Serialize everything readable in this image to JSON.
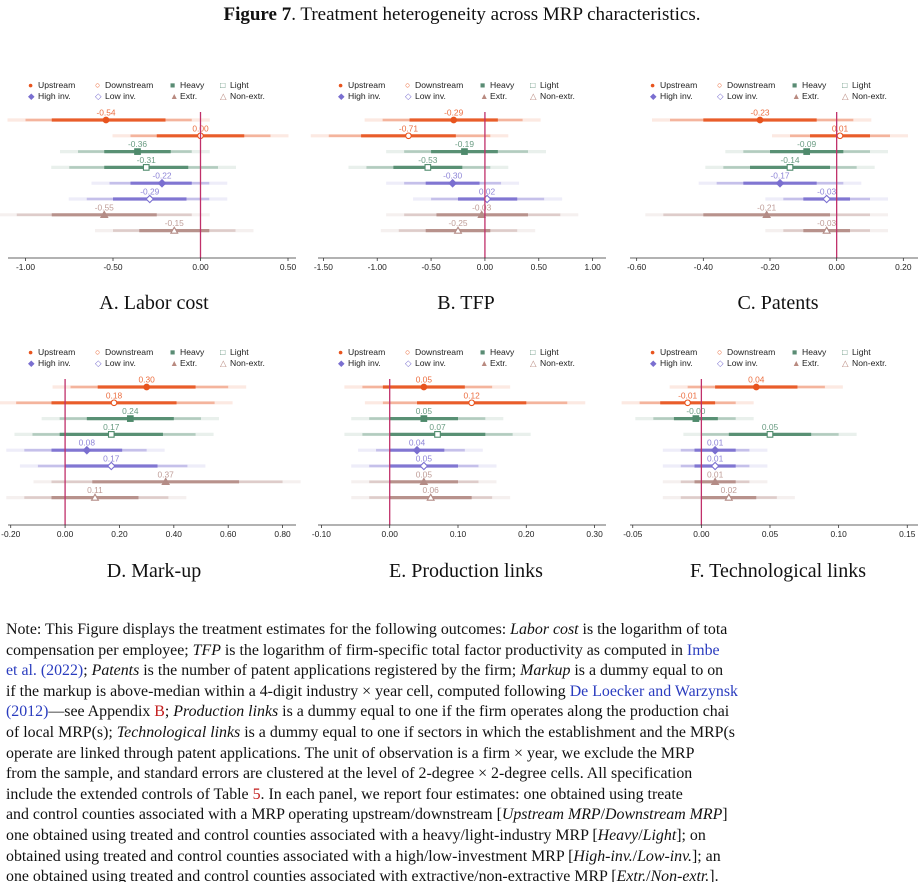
{
  "figure": {
    "label": "Figure 7",
    "title": ". Treatment heterogeneity across MRP characteristics."
  },
  "legend": {
    "row1": [
      {
        "key": "upstream",
        "text": "Upstream",
        "symbol": "●",
        "color": "#e8541e"
      },
      {
        "key": "downstream",
        "text": "Downstream",
        "symbol": "○",
        "color": "#e8541e"
      },
      {
        "key": "heavy",
        "text": "Heavy",
        "symbol": "■",
        "color": "#5a8c74"
      },
      {
        "key": "light",
        "text": "Light",
        "symbol": "□",
        "color": "#5a8c74"
      }
    ],
    "row2": [
      {
        "key": "high_inv",
        "text": "High inv.",
        "symbol": "◆",
        "color": "#7a6fd0"
      },
      {
        "key": "low_inv",
        "text": "Low inv.",
        "symbol": "◇",
        "color": "#7a6fd0"
      },
      {
        "key": "extr",
        "text": "Extr.",
        "symbol": "▲",
        "color": "#b98a80"
      },
      {
        "key": "non_extr",
        "text": "Non-extr.",
        "symbol": "△",
        "color": "#b98a80"
      }
    ]
  },
  "colors": {
    "upstream": "#e8541e",
    "heavy": "#4f8a6c",
    "high_inv": "#7a6fd0",
    "extr": "#b48c86",
    "zero_line": "#c0306a"
  },
  "chart_data": [
    {
      "type": "forest",
      "caption": "A. Labor cost",
      "xlim": [
        -1.1,
        0.5
      ],
      "ticks": [
        "-1.00",
        "-0.50",
        "0.00",
        "0.50"
      ],
      "tick_values": [
        -1.0,
        -0.5,
        0.0,
        0.5
      ],
      "estimates": [
        {
          "group": "upstream",
          "label": "-0.54",
          "value": -0.54,
          "ci95": [
            -0.85,
            -0.2
          ],
          "ci99": [
            -1.0,
            -0.05
          ]
        },
        {
          "group": "downstream",
          "label": "0.00",
          "value": 0.0,
          "ci95": [
            -0.25,
            0.25
          ],
          "ci99": [
            -0.4,
            0.4
          ]
        },
        {
          "group": "heavy",
          "label": "-0.36",
          "value": -0.36,
          "ci95": [
            -0.55,
            -0.17
          ],
          "ci99": [
            -0.7,
            -0.05
          ]
        },
        {
          "group": "light",
          "label": "-0.31",
          "value": -0.31,
          "ci95": [
            -0.55,
            -0.07
          ],
          "ci99": [
            -0.75,
            0.1
          ]
        },
        {
          "group": "high_inv",
          "label": "-0.22",
          "value": -0.22,
          "ci95": [
            -0.4,
            -0.05
          ],
          "ci99": [
            -0.52,
            0.05
          ]
        },
        {
          "group": "low_inv",
          "label": "-0.29",
          "value": -0.29,
          "ci95": [
            -0.5,
            -0.08
          ],
          "ci99": [
            -0.65,
            0.05
          ]
        },
        {
          "group": "extr",
          "label": "-0.55",
          "value": -0.55,
          "ci95": [
            -0.85,
            -0.25
          ],
          "ci99": [
            -1.05,
            -0.05
          ]
        },
        {
          "group": "non_extr",
          "label": "-0.15",
          "value": -0.15,
          "ci95": [
            -0.35,
            0.05
          ],
          "ci99": [
            -0.5,
            0.2
          ]
        }
      ]
    },
    {
      "type": "forest",
      "caption": "B. TFP",
      "xlim": [
        -1.55,
        1.05
      ],
      "ticks": [
        "-1.50",
        "-1.00",
        "-0.50",
        "0.00",
        "0.50",
        "1.00"
      ],
      "tick_values": [
        -1.5,
        -1.0,
        -0.5,
        0.0,
        0.5,
        1.0
      ],
      "estimates": [
        {
          "group": "upstream",
          "label": "-0.29",
          "value": -0.29,
          "ci95": [
            -0.7,
            0.12
          ],
          "ci99": [
            -0.95,
            0.35
          ]
        },
        {
          "group": "downstream",
          "label": "-0.71",
          "value": -0.71,
          "ci95": [
            -1.15,
            -0.27
          ],
          "ci99": [
            -1.45,
            0.05
          ]
        },
        {
          "group": "heavy",
          "label": "-0.19",
          "value": -0.19,
          "ci95": [
            -0.5,
            0.12
          ],
          "ci99": [
            -0.75,
            0.4
          ]
        },
        {
          "group": "light",
          "label": "-0.53",
          "value": -0.53,
          "ci95": [
            -0.85,
            -0.21
          ],
          "ci99": [
            -1.1,
            0.05
          ]
        },
        {
          "group": "high_inv",
          "label": "-0.30",
          "value": -0.3,
          "ci95": [
            -0.55,
            -0.05
          ],
          "ci99": [
            -0.75,
            0.15
          ]
        },
        {
          "group": "low_inv",
          "label": "0.02",
          "value": 0.02,
          "ci95": [
            -0.25,
            0.3
          ],
          "ci99": [
            -0.5,
            0.55
          ]
        },
        {
          "group": "extr",
          "label": "-0.03",
          "value": -0.03,
          "ci95": [
            -0.45,
            0.4
          ],
          "ci99": [
            -0.75,
            0.7
          ]
        },
        {
          "group": "non_extr",
          "label": "-0.25",
          "value": -0.25,
          "ci95": [
            -0.55,
            0.05
          ],
          "ci99": [
            -0.8,
            0.3
          ]
        }
      ]
    },
    {
      "type": "forest",
      "caption": "C. Patents",
      "xlim": [
        -0.62,
        0.22
      ],
      "ticks": [
        "-0.60",
        "-0.40",
        "-0.20",
        "0.00",
        "0.20"
      ],
      "tick_values": [
        -0.6,
        -0.4,
        -0.2,
        0.0,
        0.2
      ],
      "estimates": [
        {
          "group": "upstream",
          "label": "-0.23",
          "value": -0.23,
          "ci95": [
            -0.4,
            -0.06
          ],
          "ci99": [
            -0.5,
            0.05
          ]
        },
        {
          "group": "downstream",
          "label": "0.01",
          "value": 0.01,
          "ci95": [
            -0.08,
            0.1
          ],
          "ci99": [
            -0.14,
            0.16
          ]
        },
        {
          "group": "heavy",
          "label": "-0.09",
          "value": -0.09,
          "ci95": [
            -0.2,
            0.02
          ],
          "ci99": [
            -0.28,
            0.1
          ]
        },
        {
          "group": "light",
          "label": "-0.14",
          "value": -0.14,
          "ci95": [
            -0.26,
            -0.02
          ],
          "ci99": [
            -0.34,
            0.06
          ]
        },
        {
          "group": "high_inv",
          "label": "-0.17",
          "value": -0.17,
          "ci95": [
            -0.28,
            -0.06
          ],
          "ci99": [
            -0.36,
            0.02
          ]
        },
        {
          "group": "low_inv",
          "label": "-0.03",
          "value": -0.03,
          "ci95": [
            -0.1,
            0.04
          ],
          "ci99": [
            -0.16,
            0.1
          ]
        },
        {
          "group": "extr",
          "label": "-0.21",
          "value": -0.21,
          "ci95": [
            -0.4,
            -0.02
          ],
          "ci99": [
            -0.52,
            0.1
          ]
        },
        {
          "group": "non_extr",
          "label": "-0.03",
          "value": -0.03,
          "ci95": [
            -0.1,
            0.04
          ],
          "ci99": [
            -0.16,
            0.1
          ]
        }
      ]
    },
    {
      "type": "forest",
      "caption": "D. Mark-up",
      "xlim": [
        -0.21,
        0.82
      ],
      "ticks": [
        "-0.20",
        "0.00",
        "0.20",
        "0.40",
        "0.60",
        "0.80"
      ],
      "tick_values": [
        -0.2,
        0.0,
        0.2,
        0.4,
        0.6,
        0.8
      ],
      "estimates": [
        {
          "group": "upstream",
          "label": "0.30",
          "value": 0.3,
          "ci95": [
            0.12,
            0.48
          ],
          "ci99": [
            0.02,
            0.6
          ]
        },
        {
          "group": "downstream",
          "label": "0.18",
          "value": 0.18,
          "ci95": [
            -0.05,
            0.41
          ],
          "ci99": [
            -0.18,
            0.55
          ]
        },
        {
          "group": "heavy",
          "label": "0.24",
          "value": 0.24,
          "ci95": [
            0.08,
            0.4
          ],
          "ci99": [
            -0.02,
            0.5
          ]
        },
        {
          "group": "light",
          "label": "0.17",
          "value": 0.17,
          "ci95": [
            -0.02,
            0.36
          ],
          "ci99": [
            -0.12,
            0.48
          ]
        },
        {
          "group": "high_inv",
          "label": "0.08",
          "value": 0.08,
          "ci95": [
            -0.05,
            0.21
          ],
          "ci99": [
            -0.15,
            0.3
          ]
        },
        {
          "group": "low_inv",
          "label": "0.17",
          "value": 0.17,
          "ci95": [
            0.0,
            0.34
          ],
          "ci99": [
            -0.1,
            0.45
          ]
        },
        {
          "group": "extr",
          "label": "0.37",
          "value": 0.37,
          "ci95": [
            0.1,
            0.64
          ],
          "ci99": [
            -0.05,
            0.8
          ]
        },
        {
          "group": "non_extr",
          "label": "0.11",
          "value": 0.11,
          "ci95": [
            -0.05,
            0.27
          ],
          "ci99": [
            -0.15,
            0.38
          ]
        }
      ]
    },
    {
      "type": "forest",
      "caption": "E. Production links",
      "xlim": [
        -0.105,
        0.305
      ],
      "ticks": [
        "-0.10",
        "0.00",
        "0.10",
        "0.20",
        "0.30"
      ],
      "tick_values": [
        -0.1,
        0.0,
        0.1,
        0.2,
        0.3
      ],
      "estimates": [
        {
          "group": "upstream",
          "label": "0.05",
          "value": 0.05,
          "ci95": [
            -0.01,
            0.11
          ],
          "ci99": [
            -0.04,
            0.15
          ]
        },
        {
          "group": "downstream",
          "label": "0.12",
          "value": 0.12,
          "ci95": [
            0.04,
            0.2
          ],
          "ci99": [
            -0.01,
            0.26
          ]
        },
        {
          "group": "heavy",
          "label": "0.05",
          "value": 0.05,
          "ci95": [
            0.0,
            0.1
          ],
          "ci99": [
            -0.03,
            0.14
          ]
        },
        {
          "group": "light",
          "label": "0.07",
          "value": 0.07,
          "ci95": [
            0.0,
            0.14
          ],
          "ci99": [
            -0.04,
            0.18
          ]
        },
        {
          "group": "high_inv",
          "label": "0.04",
          "value": 0.04,
          "ci95": [
            0.0,
            0.08
          ],
          "ci99": [
            -0.02,
            0.11
          ]
        },
        {
          "group": "low_inv",
          "label": "0.05",
          "value": 0.05,
          "ci95": [
            0.0,
            0.1
          ],
          "ci99": [
            -0.03,
            0.13
          ]
        },
        {
          "group": "extr",
          "label": "0.05",
          "value": 0.05,
          "ci95": [
            0.0,
            0.1
          ],
          "ci99": [
            -0.03,
            0.13
          ]
        },
        {
          "group": "non_extr",
          "label": "0.06",
          "value": 0.06,
          "ci95": [
            0.0,
            0.12
          ],
          "ci99": [
            -0.03,
            0.15
          ]
        }
      ]
    },
    {
      "type": "forest",
      "caption": "F. Technological links",
      "xlim": [
        -0.052,
        0.152
      ],
      "ticks": [
        "-0.05",
        "0.00",
        "0.05",
        "0.10",
        "0.15"
      ],
      "tick_values": [
        -0.05,
        0.0,
        0.05,
        0.1,
        0.15
      ],
      "estimates": [
        {
          "group": "upstream",
          "label": "0.04",
          "value": 0.04,
          "ci95": [
            0.01,
            0.07
          ],
          "ci99": [
            -0.01,
            0.09
          ]
        },
        {
          "group": "downstream",
          "label": "-0.01",
          "value": -0.01,
          "ci95": [
            -0.03,
            0.01
          ],
          "ci99": [
            -0.045,
            0.025
          ]
        },
        {
          "group": "heavy",
          "label": "-0.00",
          "value": -0.004,
          "ci95": [
            -0.02,
            0.012
          ],
          "ci99": [
            -0.035,
            0.025
          ]
        },
        {
          "group": "light",
          "label": "0.05",
          "value": 0.05,
          "ci95": [
            0.02,
            0.08
          ],
          "ci99": [
            0.0,
            0.1
          ]
        },
        {
          "group": "high_inv",
          "label": "0.01",
          "value": 0.01,
          "ci95": [
            -0.005,
            0.025
          ],
          "ci99": [
            -0.015,
            0.035
          ]
        },
        {
          "group": "low_inv",
          "label": "0.01",
          "value": 0.01,
          "ci95": [
            -0.005,
            0.025
          ],
          "ci99": [
            -0.015,
            0.035
          ]
        },
        {
          "group": "extr",
          "label": "0.01",
          "value": 0.01,
          "ci95": [
            -0.005,
            0.025
          ],
          "ci99": [
            -0.015,
            0.035
          ]
        },
        {
          "group": "non_extr",
          "label": "0.02",
          "value": 0.02,
          "ci95": [
            0.0,
            0.04
          ],
          "ci99": [
            -0.015,
            0.055
          ]
        }
      ]
    }
  ],
  "note": {
    "l1a": "Note: This Figure displays the treatment estimates for the following outcomes: ",
    "l1b": "Labor cost",
    "l1c": " is the logarithm of tota",
    "l2a": "compensation per employee; ",
    "l2b": "TFP",
    "l2c": " is the logarithm of firm-specific total factor productivity as computed in ",
    "l2d": "Imbe",
    "l3a": "et al. (2022)",
    "l3b": "; ",
    "l3c": "Patents",
    "l3d": " is the number of patent applications registered by the firm; ",
    "l3e": "Markup",
    "l3f": " is a dummy equal to on",
    "l4a": "if the markup is above-median within a 4-digit industry × year cell, computed following ",
    "l4b": "De Loecker and Warzynsk",
    "l5a": "(2012)",
    "l5b": "—see Appendix ",
    "l5c": "B",
    "l5d": "; ",
    "l5e": "Production links",
    "l5f": " is a dummy equal to one if the firm operates along the production chai",
    "l6a": "of local MRP(s); ",
    "l6b": "Technological links",
    "l6c": " is a dummy equal to one if sectors in which the establishment and the MRP(s",
    "l7": "operate are linked through patent applications.  The unit of observation is a firm × year, we exclude the MRP",
    "l8": "from the sample, and standard errors are clustered at the level of 2-degree × 2-degree cells.  All specification",
    "l9a": "include the extended controls of Table ",
    "l9b": "5",
    "l9c": ".  In each panel, we report four estimates:  one obtained using treate",
    "l10a": "and control counties associated with a MRP operating upstream/downstream [",
    "l10b": "Upstream MRP",
    "l10c": "/",
    "l10d": "Downstream MRP",
    "l10e": "]",
    "l11a": "one obtained using treated and control counties associated with a heavy/light-industry MRP [",
    "l11b": "Heavy",
    "l11c": "/",
    "l11d": "Light",
    "l11e": "]; on",
    "l12a": "obtained using treated and control counties associated with a high/low-investment MRP [",
    "l12b": "High-inv.",
    "l12c": "/",
    "l12d": "Low-inv.",
    "l12e": "]; an",
    "l13a": "one obtained using treated and control counties associated with extractive/non-extractive MRP [",
    "l13b": "Extr.",
    "l13c": "/",
    "l13d": "Non-extr.",
    "l13e": "]."
  }
}
